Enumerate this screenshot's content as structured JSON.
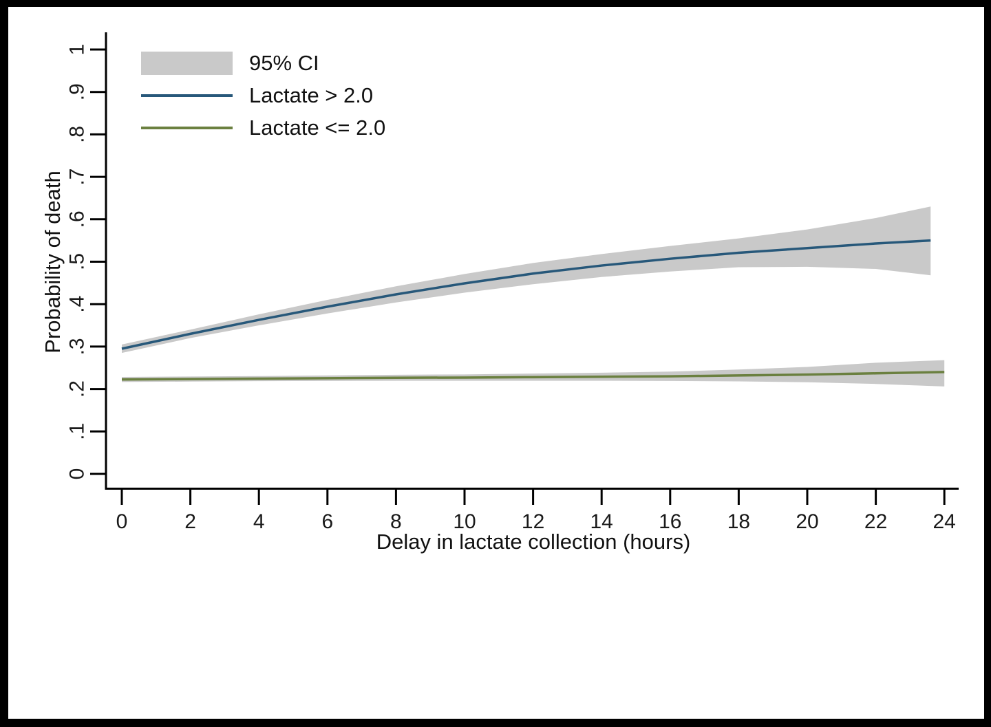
{
  "figure": {
    "background": "#ffffff",
    "frame_color": "#000000",
    "text_color": "#1a1a1a"
  },
  "chart_data": {
    "type": "line",
    "title": "",
    "xlabel": "Delay in lactate collection (hours)",
    "ylabel": "Probability of death",
    "xlim": [
      0,
      24.4
    ],
    "ylim": [
      0,
      1
    ],
    "grid": false,
    "legend_position": "top-left",
    "ci_color": "#c9c9c9",
    "xticks": {
      "values": [
        0,
        2,
        4,
        6,
        8,
        10,
        12,
        14,
        16,
        18,
        20,
        22,
        24
      ],
      "labels": [
        "0",
        "2",
        "4",
        "6",
        "8",
        "10",
        "12",
        "14",
        "16",
        "18",
        "20",
        "22",
        "24"
      ]
    },
    "yticks": {
      "values": [
        0,
        0.1,
        0.2,
        0.3,
        0.4,
        0.5,
        0.6,
        0.7,
        0.8,
        0.9,
        1
      ],
      "labels": [
        "0",
        ".1",
        ".2",
        ".3",
        ".4",
        ".5",
        ".6",
        ".7",
        ".8",
        ".9",
        "1"
      ]
    },
    "legend": [
      {
        "label": "95% CI",
        "swatch": "band",
        "color": "#c9c9c9"
      },
      {
        "label": "Lactate > 2.0",
        "swatch": "line",
        "color": "#27587a"
      },
      {
        "label": "Lactate <= 2.0",
        "swatch": "line",
        "color": "#6b8040"
      }
    ],
    "series": [
      {
        "name": "Lactate > 2.0",
        "color": "#27587a",
        "x": [
          0,
          2,
          4,
          6,
          8,
          10,
          12,
          14,
          16,
          18,
          20,
          22,
          23.6
        ],
        "y": [
          0.295,
          0.33,
          0.363,
          0.394,
          0.423,
          0.449,
          0.472,
          0.491,
          0.507,
          0.521,
          0.532,
          0.543,
          0.55
        ],
        "ci_lower": [
          0.285,
          0.32,
          0.35,
          0.378,
          0.404,
          0.427,
          0.447,
          0.464,
          0.477,
          0.487,
          0.488,
          0.483,
          0.468
        ],
        "ci_upper": [
          0.305,
          0.34,
          0.376,
          0.41,
          0.442,
          0.471,
          0.497,
          0.518,
          0.537,
          0.555,
          0.576,
          0.603,
          0.63
        ]
      },
      {
        "name": "Lactate <= 2.0",
        "color": "#6b8040",
        "x": [
          0,
          2,
          4,
          6,
          8,
          10,
          12,
          14,
          16,
          18,
          20,
          22,
          24
        ],
        "y": [
          0.2225,
          0.2235,
          0.2245,
          0.2255,
          0.2265,
          0.227,
          0.228,
          0.229,
          0.23,
          0.232,
          0.234,
          0.237,
          0.24
        ],
        "ci_lower": [
          0.2165,
          0.2175,
          0.2185,
          0.219,
          0.2195,
          0.2195,
          0.2195,
          0.2195,
          0.219,
          0.218,
          0.216,
          0.212,
          0.206
        ],
        "ci_upper": [
          0.2285,
          0.2295,
          0.2305,
          0.232,
          0.2335,
          0.2345,
          0.2365,
          0.2385,
          0.241,
          0.246,
          0.252,
          0.262,
          0.268
        ]
      }
    ]
  }
}
